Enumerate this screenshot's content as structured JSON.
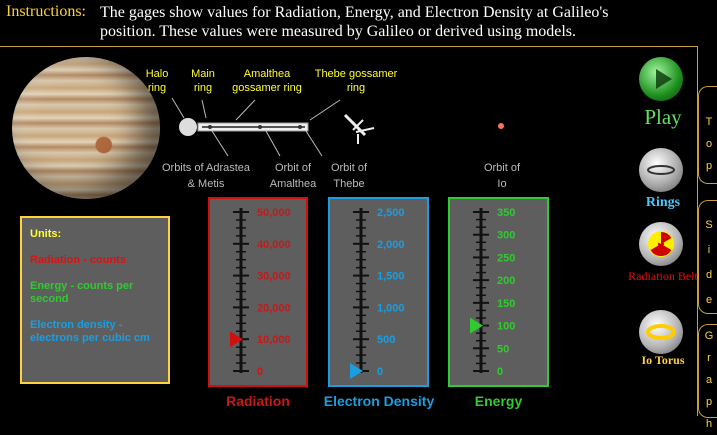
{
  "instructions": {
    "label": "Instructions:",
    "text": "The gages show values for Radiation, Energy, and Electron Density at Galileo's position. These values were measured by Galileo or derived using models."
  },
  "diagram": {
    "labels_top": [
      "Halo ring",
      "Main ring",
      "Amalthea gossamer ring",
      "Thebe gossamer ring"
    ],
    "labels_bottom": [
      "Orbits of Adrastea & Metis",
      "Orbit of Amalthea",
      "Orbit of Thebe",
      "Orbit of Io"
    ]
  },
  "units": {
    "title": "Units:",
    "radiation": "Radiation - counts",
    "energy": "Energy - counts per second",
    "electron": "Electron density - electrons per cubic cm"
  },
  "gauges": [
    {
      "name": "Radiation",
      "color": "#d01010",
      "text_color": "#c81818",
      "ticks": [
        "50,000",
        "40,000",
        "30,000",
        "20,000",
        "10,000",
        "0"
      ],
      "max": 50000,
      "value": 10000
    },
    {
      "name": "Electron Density",
      "color": "#1a9ee0",
      "text_color": "#1a9ee0",
      "ticks": [
        "2,500",
        "2,000",
        "1,500",
        "1,000",
        "500",
        "0"
      ],
      "max": 2500,
      "value": 0
    },
    {
      "name": "Energy",
      "color": "#2fcb2f",
      "text_color": "#2fcb2f",
      "ticks": [
        "350",
        "300",
        "250",
        "200",
        "150",
        "100",
        "50",
        "0"
      ],
      "max": 350,
      "value": 100
    }
  ],
  "controls": {
    "play": "Play",
    "rings": "Rings",
    "radiation_belt": "Radiation Belt",
    "io_torus": "Io Torus"
  },
  "tabs": [
    "Top",
    "Side",
    "Graph"
  ],
  "colors": {
    "accent": "#ffd23c",
    "label_yellow": "#ffff33",
    "panel": "#5e5e5e"
  }
}
